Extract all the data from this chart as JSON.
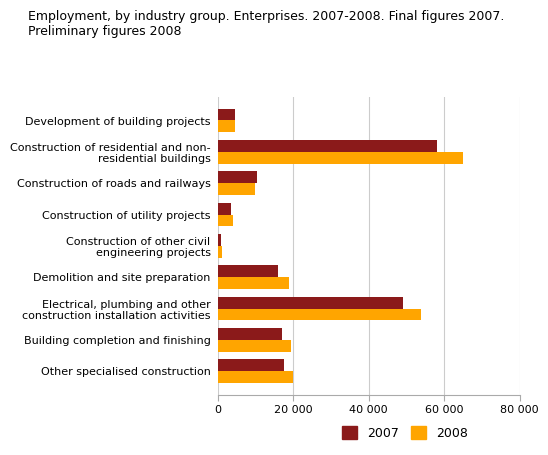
{
  "title": "Employment, by industry group. Enterprises. 2007-2008. Final figures 2007.\nPreliminary figures 2008",
  "categories": [
    "Development of building projects",
    "Construction of residential and non-\nresidential buildings",
    "Construction of roads and railways",
    "Construction of utility projects",
    "Construction of other civil\nengineering projects",
    "Demolition and site preparation",
    "Electrical, plumbing and other\nconstruction installation activities",
    "Building completion and finishing",
    "Other specialised construction"
  ],
  "values_2007": [
    4500,
    58000,
    10500,
    3500,
    1000,
    16000,
    49000,
    17000,
    17500
  ],
  "values_2008": [
    4500,
    65000,
    10000,
    4000,
    1200,
    19000,
    54000,
    19500,
    20000
  ],
  "color_2007": "#8B1A1A",
  "color_2008": "#FFA500",
  "xlim": [
    0,
    80000
  ],
  "xticks": [
    0,
    20000,
    40000,
    60000,
    80000
  ],
  "xtick_labels": [
    "0",
    "20 000",
    "40 000",
    "60 000",
    "80 000"
  ],
  "bar_height": 0.38,
  "background_color": "#ffffff",
  "grid_color": "#cccccc",
  "title_fontsize": 9,
  "axis_fontsize": 8,
  "legend_fontsize": 9
}
